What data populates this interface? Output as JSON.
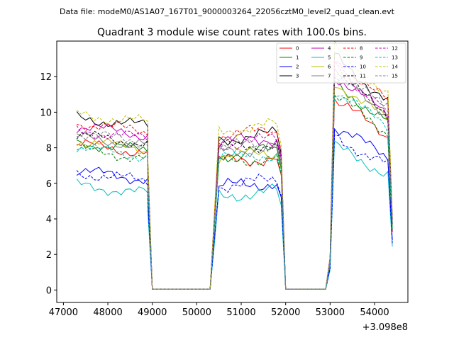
{
  "suptitle": "Data file: modeM0/AS1A07_167T01_9000003264_22056cztM0_level2_quad_clean.evt",
  "chart_data": {
    "type": "line",
    "title": "Quadrant 3 module wise count rates with 100.0s bins.",
    "xlabel": "",
    "ylabel": "",
    "x_offset_label": "+3.098e8",
    "xlim": [
      46850,
      54750
    ],
    "ylim": [
      -0.7,
      14.0
    ],
    "x_ticks": [
      47000,
      48000,
      49000,
      50000,
      51000,
      52000,
      53000,
      54000
    ],
    "x_tick_labels": [
      "47000",
      "48000",
      "49000",
      "50000",
      "51000",
      "52000",
      "53000",
      "54000"
    ],
    "y_ticks": [
      0,
      2,
      4,
      6,
      8,
      10,
      12
    ],
    "y_tick_labels": [
      "0",
      "2",
      "4",
      "6",
      "8",
      "10",
      "12"
    ],
    "legend_location": "upper right",
    "segments": [
      {
        "start": 47300,
        "count": 17
      },
      {
        "start": 48900,
        "count": 2
      },
      {
        "start": 49100,
        "count": 11
      },
      {
        "start": 50300,
        "count": 2
      },
      {
        "start": 50500,
        "count": 14
      },
      {
        "start": 51900,
        "count": 2
      },
      {
        "start": 52100,
        "count": 8
      },
      {
        "start": 52900,
        "count": 2
      },
      {
        "start": 53100,
        "count": 14
      }
    ],
    "series": [
      {
        "name": "0",
        "color": "#ff0000",
        "dash": "solid",
        "levels": [
          8.2,
          0.0,
          7.2,
          0.0,
          8.0,
          9.3
        ]
      },
      {
        "name": "1",
        "color": "#008000",
        "dash": "solid",
        "levels": [
          8.3,
          0.0,
          7.6,
          0.0,
          8.2,
          10.1
        ]
      },
      {
        "name": "2",
        "color": "#0000ff",
        "dash": "solid",
        "levels": [
          6.7,
          0.0,
          5.8,
          0.0,
          6.2,
          8.0
        ]
      },
      {
        "name": "3",
        "color": "#000000",
        "dash": "solid",
        "levels": [
          9.7,
          0.0,
          8.5,
          0.0,
          9.1,
          11.4
        ]
      },
      {
        "name": "4",
        "color": "#bf00bf",
        "dash": "solid",
        "levels": [
          9.2,
          0.0,
          8.3,
          0.0,
          8.8,
          10.5
        ]
      },
      {
        "name": "5",
        "color": "#00bfbf",
        "dash": "solid",
        "levels": [
          5.9,
          0.0,
          5.3,
          0.0,
          5.6,
          7.0
        ]
      },
      {
        "name": "6",
        "color": "#bfbf00",
        "dash": "solid",
        "levels": [
          8.4,
          0.0,
          7.5,
          0.0,
          8.1,
          10.2
        ]
      },
      {
        "name": "7",
        "color": "#808080",
        "dash": "solid",
        "levels": [
          8.6,
          0.0,
          7.8,
          0.0,
          8.3,
          10.6
        ]
      },
      {
        "name": "8",
        "color": "#ff0000",
        "dash": "dashed",
        "levels": [
          9.4,
          0.0,
          8.7,
          0.0,
          9.2,
          11.3
        ]
      },
      {
        "name": "9",
        "color": "#008000",
        "dash": "dashed",
        "levels": [
          7.9,
          0.0,
          7.2,
          0.0,
          7.7,
          9.5
        ]
      },
      {
        "name": "10",
        "color": "#0000ff",
        "dash": "dashed",
        "levels": [
          6.6,
          0.0,
          5.9,
          0.0,
          6.1,
          7.5
        ]
      },
      {
        "name": "11",
        "color": "#000000",
        "dash": "dashed",
        "levels": [
          8.7,
          0.0,
          8.0,
          0.0,
          8.4,
          10.6
        ]
      },
      {
        "name": "12",
        "color": "#bf00bf",
        "dash": "dashed",
        "levels": [
          9.0,
          0.0,
          8.2,
          0.0,
          8.7,
          10.9
        ]
      },
      {
        "name": "13",
        "color": "#00bfbf",
        "dash": "dashed",
        "levels": [
          8.0,
          0.0,
          7.4,
          0.0,
          7.8,
          9.8
        ]
      },
      {
        "name": "14",
        "color": "#bfbf00",
        "dash": "dashed",
        "levels": [
          9.9,
          0.0,
          9.0,
          0.0,
          9.5,
          11.8
        ]
      },
      {
        "name": "15",
        "color": "#808080",
        "dash": "dashed",
        "levels": [
          8.8,
          0.0,
          8.0,
          0.0,
          8.5,
          10.8
        ]
      }
    ]
  }
}
